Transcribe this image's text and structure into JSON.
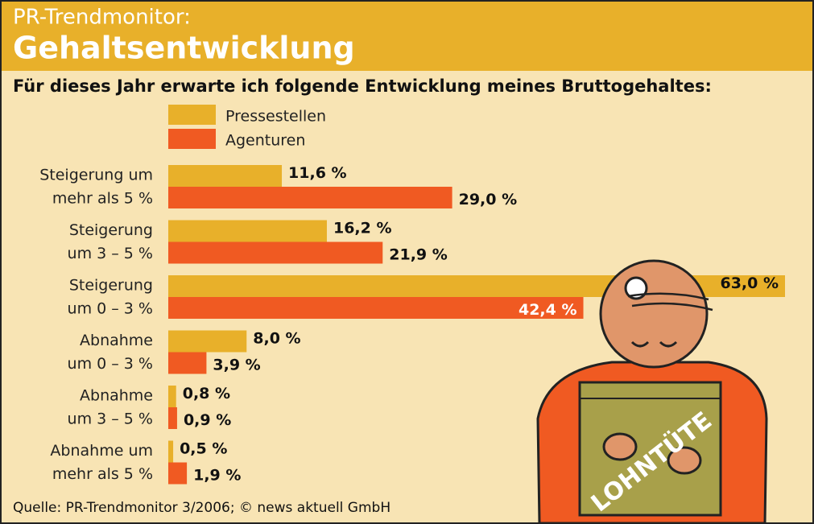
{
  "chart_data": {
    "type": "hbar",
    "title": "PR-Trendmonitor:",
    "subtitle": "Gehaltsentwicklung",
    "question": "Für dieses Jahr erwarte ich folgende Entwicklung meines Bruttogehaltes:",
    "categories": [
      [
        "Steigerung um",
        "mehr als 5 %"
      ],
      [
        "Steigerung",
        "um 3 – 5 %"
      ],
      [
        "Steigerung",
        "um 0 – 3 %"
      ],
      [
        "Abnahme",
        "um 0 – 3 %"
      ],
      [
        "Abnahme",
        "um 3 – 5 %"
      ],
      [
        "Abnahme um",
        "mehr als 5 %"
      ]
    ],
    "series": [
      {
        "name": "Pressestellen",
        "color": "#e8b02a",
        "values": [
          11.6,
          16.2,
          63.0,
          8.0,
          0.8,
          0.5
        ],
        "value_labels": [
          "11,6 %",
          "16,2 %",
          "63,0 %",
          "8,0 %",
          "0,8 %",
          "0,5 %"
        ]
      },
      {
        "name": "Agenturen",
        "color": "#f05a22",
        "values": [
          29.0,
          21.9,
          42.4,
          3.9,
          0.9,
          1.9
        ],
        "value_labels": [
          "29,0 %",
          "21,9 %",
          "42,4 %",
          "3,9 %",
          "0,9 %",
          "1,9 %"
        ]
      }
    ],
    "illustration_text": "LOHNTÜTE",
    "source": "Quelle: PR-Trendmonitor 3/2006; © news aktuell GmbH"
  }
}
